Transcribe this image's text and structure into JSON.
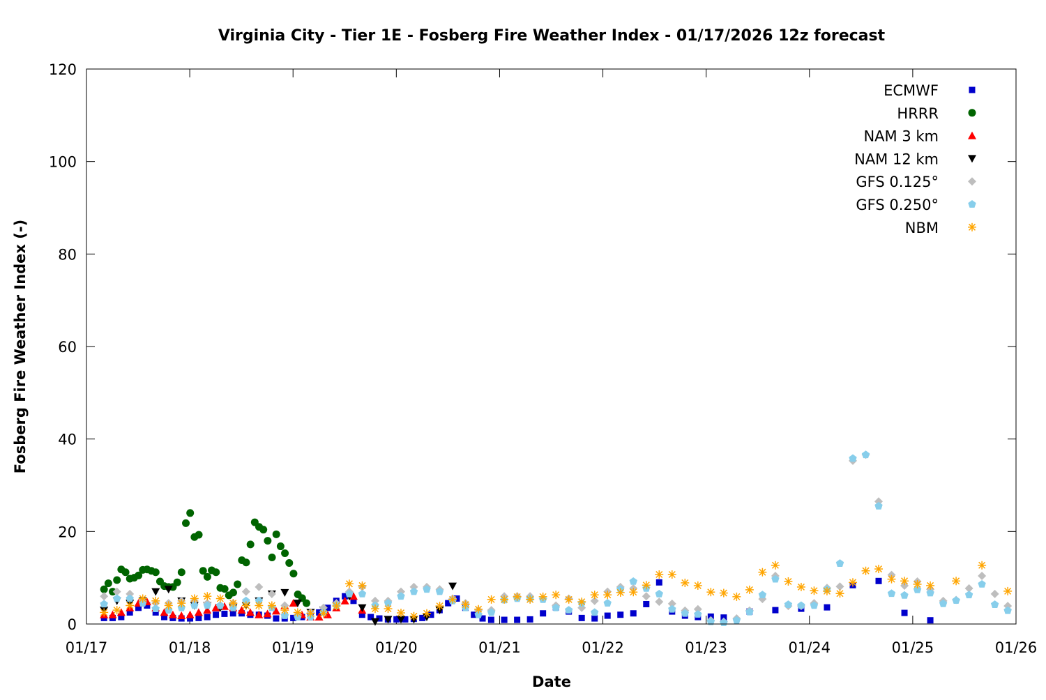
{
  "chart_data": {
    "type": "scatter",
    "title": "Virginia City - Tier 1E - Fosberg Fire Weather Index - 01/17/2026 12z forecast",
    "xlabel": "Date",
    "ylabel": "Fosberg Fire Weather Index (-)",
    "x_units": "days since 01/17",
    "xlim": [
      0,
      9
    ],
    "ylim": [
      0,
      120
    ],
    "xticks": [
      {
        "value": 0,
        "label": "01/17"
      },
      {
        "value": 1,
        "label": "01/18"
      },
      {
        "value": 2,
        "label": "01/19"
      },
      {
        "value": 3,
        "label": "01/20"
      },
      {
        "value": 4,
        "label": "01/21"
      },
      {
        "value": 5,
        "label": "01/22"
      },
      {
        "value": 6,
        "label": "01/23"
      },
      {
        "value": 7,
        "label": "01/24"
      },
      {
        "value": 8,
        "label": "01/25"
      },
      {
        "value": 9,
        "label": "01/26"
      }
    ],
    "yticks": [
      0,
      20,
      40,
      60,
      80,
      100,
      120
    ],
    "grid": false,
    "legend_position": "top-right",
    "series": [
      {
        "name": "ECMWF",
        "marker": "square",
        "color": "#0000cc",
        "segments": [
          {
            "start": 0.17,
            "step": 0.0833,
            "values": [
              1.3,
              1.3,
              1.5,
              2.5,
              3.5,
              4,
              2.5,
              1.5,
              1.3,
              1.2,
              1.2,
              1.3,
              1.5,
              2.0,
              2.2,
              2.3,
              2.3,
              2,
              2,
              1.8,
              1.2,
              1.2,
              1.3,
              1.5,
              1.8,
              2.5,
              3.5,
              5,
              6,
              5,
              2,
              1.5,
              1.2,
              1,
              1,
              1,
              1.1,
              1.3,
              2,
              3,
              4.5,
              5.5,
              3.5,
              2,
              1.2,
              0.9
            ]
          },
          {
            "start": 4.045,
            "step": 0.125,
            "values": [
              0.9,
              0.9,
              1.0,
              2.3,
              3.6,
              2.7,
              1.3,
              1.2,
              1.8,
              2.0,
              2.3,
              4.3,
              9.0,
              2.7,
              1.8,
              1.5,
              1.6,
              1.4
            ]
          },
          {
            "start": 6.42,
            "step": 0.25,
            "values": [
              2.7,
              3.0,
              3.3,
              3.6,
              8.4,
              9.3,
              2.4,
              0.8
            ]
          }
        ]
      },
      {
        "name": "HRRR",
        "marker": "circle",
        "color": "#006400",
        "segments": [
          {
            "start": 0.17,
            "step": 0.0417,
            "values": [
              7.5,
              8.8,
              7,
              9.5,
              11.8,
              11.2,
              9.8,
              10,
              10.5,
              11.7,
              11.8,
              11.5,
              11.2,
              9.2,
              8.2,
              8,
              8,
              9,
              11.2,
              21.8,
              24,
              18.8,
              19.3,
              11.5,
              10.2,
              11.6,
              11.2,
              7.8,
              7.6,
              6.2,
              6.8,
              8.6,
              13.8,
              13.3,
              17.2,
              22,
              21,
              20.4,
              18,
              14.4,
              19.4,
              16.8,
              15.3,
              13.2,
              10.9,
              6.4,
              5.6,
              4.5
            ]
          }
        ]
      },
      {
        "name": "NAM 3 km",
        "marker": "triangle-up",
        "color": "#ff0000",
        "segments": [
          {
            "start": 0.17,
            "step": 0.0833,
            "values": [
              2,
              2,
              2.5,
              3.5,
              4.5,
              4.8,
              3.5,
              2.5,
              2,
              1.8,
              2,
              2.5,
              3,
              3.5,
              3.8,
              3.5,
              3,
              2.5,
              2,
              2.2,
              2.8,
              4,
              4.5,
              2,
              1.5,
              1.5,
              2,
              3.5,
              5,
              6,
              3
            ]
          }
        ]
      },
      {
        "name": "NAM 12 km",
        "marker": "triangle-down",
        "color": "#000000",
        "segments": [
          {
            "start": 0.17,
            "step": 0.125,
            "values": [
              3,
              5,
              4.5,
              5,
              7,
              7.5,
              5,
              4,
              4,
              3.5,
              3.5,
              4,
              5,
              6.5,
              6.8,
              4.5,
              2.5,
              3,
              4,
              6,
              3.5,
              0.5,
              1,
              1,
              1,
              1.5,
              3,
              8.2
            ]
          }
        ]
      },
      {
        "name": "GFS 0.125°",
        "marker": "diamond",
        "color": "#bebebe",
        "segments": [
          {
            "start": 0.17,
            "step": 0.125,
            "values": [
              6,
              7,
              6.5,
              5,
              4.5,
              4.5,
              5,
              5,
              4.5,
              4,
              4.5,
              7,
              8,
              6.5,
              4,
              2,
              2.5,
              3.5,
              4.5,
              7,
              8,
              5,
              5,
              7,
              8,
              8,
              7.5,
              5.5,
              4.5,
              3,
              3,
              6,
              6,
              6,
              5.5,
              4,
              5.5,
              3.5,
              5,
              7,
              8,
              7.7,
              6,
              4.8,
              4.4,
              2.9,
              3.2,
              0.8,
              0.5,
              1.2,
              2.9,
              5.4,
              10.4,
              3.9,
              3.9,
              4.5,
              7.8,
              8.1,
              35.3,
              36.6,
              26.5,
              10.6,
              8.3,
              9.2,
              7.5,
              5,
              5.2,
              7.7,
              10.4,
              6.5,
              3.9
            ]
          }
        ]
      },
      {
        "name": "GFS 0.250°",
        "marker": "pentagon",
        "color": "#87ceeb",
        "segments": [
          {
            "start": 0.17,
            "step": 0.125,
            "values": [
              4.3,
              5.5,
              5.5,
              4.5,
              3.3,
              3,
              3.5,
              4,
              4,
              4,
              3.5,
              5,
              5,
              3.5,
              1.8,
              1.5,
              1.5,
              2.5,
              4,
              6.5,
              6.5,
              4,
              4.5,
              6,
              7,
              7.5,
              7,
              5,
              3.5,
              2,
              2.5,
              5.2,
              5.5,
              5.5,
              5.3,
              3.5,
              3,
              4.5,
              2.5,
              4.5,
              7.5,
              9.2,
              7.7,
              6.5,
              3.2,
              2.3,
              2.1,
              0.5,
              0.3,
              0.8,
              2.6,
              6.3,
              9.7,
              4.2,
              4,
              4,
              7.5,
              13.1,
              35.8,
              36.6,
              25.5,
              6.6,
              6.2,
              7.4,
              6.7,
              4.4,
              5.1,
              6.3,
              8.6,
              4.2,
              2.9
            ]
          }
        ]
      },
      {
        "name": "NBM",
        "marker": "asterisk",
        "color": "#ffa500",
        "segments": [
          {
            "start": 0.17,
            "step": 0.125,
            "values": [
              2.5,
              3,
              4,
              5.5,
              5,
              4,
              4.5,
              5.5,
              6,
              5.5,
              4.5,
              4,
              4,
              4,
              3,
              2.5,
              2.3,
              2.3,
              3.9,
              8.7,
              8.3,
              3.3,
              3.3,
              2.4,
              1.7,
              2.3,
              3.9,
              5.3,
              4.2,
              3.2,
              5.3,
              5.3,
              5.9,
              5.3,
              5.9,
              6.3,
              5.3,
              4.8,
              6.3,
              6.3,
              6.8,
              6.9,
              8.4,
              10.7,
              10.7,
              8.9,
              8.3,
              6.9,
              6.7,
              5.9,
              7.4,
              11.2,
              12.7,
              9.2,
              8.0,
              7.2,
              7.1,
              6.6,
              9.0,
              11.5,
              11.9,
              9.7,
              9.3,
              8.6,
              8.3,
              null,
              9.3,
              null,
              12.7,
              null,
              7.1
            ]
          }
        ]
      }
    ]
  }
}
